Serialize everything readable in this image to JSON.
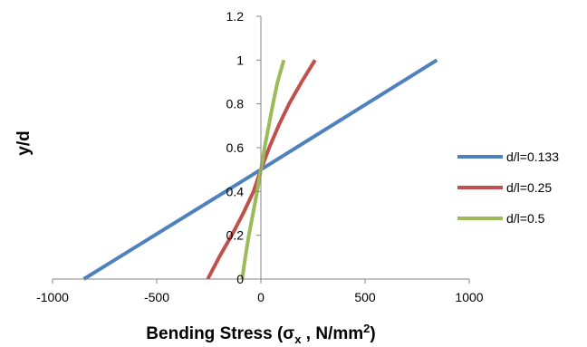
{
  "chart_data": {
    "type": "line",
    "xlabel": "Bending Stress (σx , N/mm2)",
    "xlabel_main": "Bending Stress (σ",
    "xlabel_sub": "x",
    "xlabel_mid": " , N/mm",
    "xlabel_sup": "2",
    "xlabel_end": ")",
    "ylabel": "y/d",
    "xlim": [
      -1000,
      1000
    ],
    "ylim": [
      0,
      1.2
    ],
    "xticks": [
      "-1000",
      "-500",
      "0",
      "500",
      "1000"
    ],
    "xtick_values": [
      -1000,
      -500,
      0,
      500,
      1000
    ],
    "yticks": [
      "0",
      "0.2",
      "0.4",
      "0.6",
      "0.8",
      "1",
      "1.2"
    ],
    "ytick_values": [
      0,
      0.2,
      0.4,
      0.6,
      0.8,
      1.0,
      1.2
    ],
    "grid": false,
    "legend_position": "right",
    "series": [
      {
        "name": "d/l=0.133",
        "color": "#4F81BD",
        "points": [
          [
            -850,
            0
          ],
          [
            0,
            0.5
          ],
          [
            845,
            1.0
          ]
        ]
      },
      {
        "name": "d/l=0.25",
        "color": "#C0504D",
        "points": [
          [
            -255,
            0
          ],
          [
            -200,
            0.1
          ],
          [
            -140,
            0.2
          ],
          [
            -85,
            0.3
          ],
          [
            -35,
            0.4
          ],
          [
            0,
            0.5
          ],
          [
            40,
            0.6
          ],
          [
            85,
            0.7
          ],
          [
            135,
            0.8
          ],
          [
            195,
            0.9
          ],
          [
            260,
            1.0
          ]
        ]
      },
      {
        "name": "d/l=0.5",
        "color": "#9BBB59",
        "points": [
          [
            -90,
            0
          ],
          [
            -75,
            0.1
          ],
          [
            -58,
            0.2
          ],
          [
            -38,
            0.3
          ],
          [
            -18,
            0.4
          ],
          [
            0,
            0.5
          ],
          [
            18,
            0.6
          ],
          [
            38,
            0.7
          ],
          [
            58,
            0.8
          ],
          [
            80,
            0.9
          ],
          [
            110,
            1.0
          ]
        ]
      }
    ]
  }
}
